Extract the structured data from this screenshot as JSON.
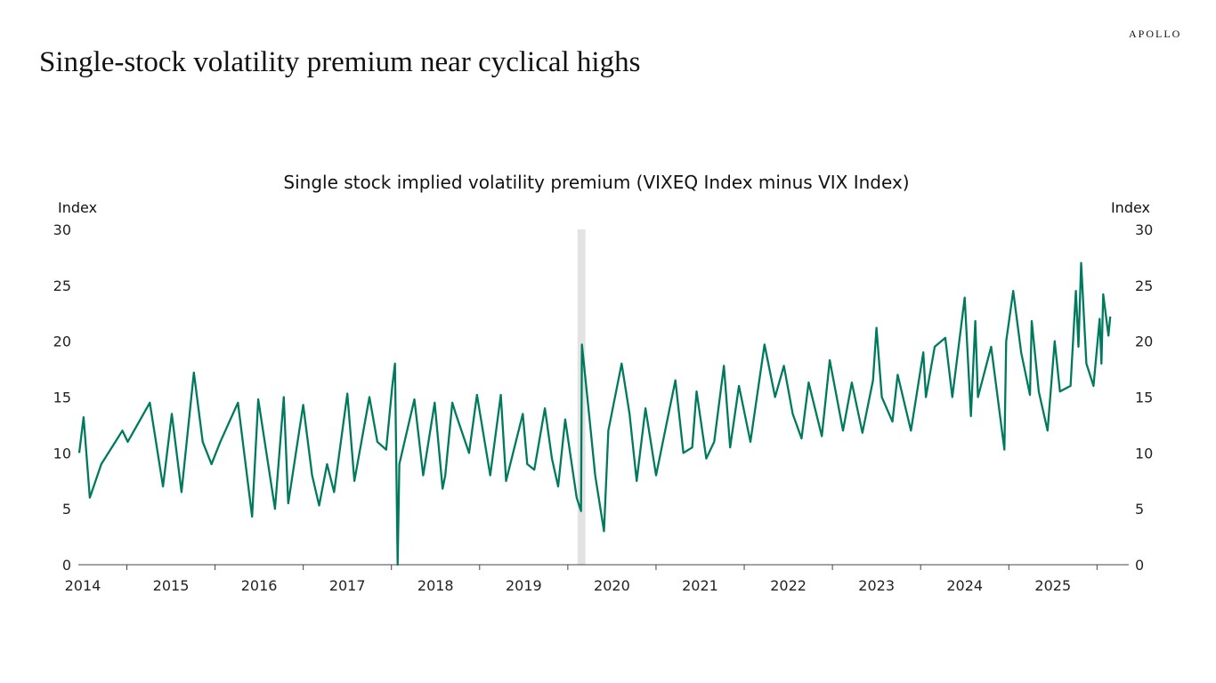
{
  "header": {
    "title": "Single-stock volatility premium near cyclical highs",
    "logo": "APOLLO"
  },
  "chart_data": {
    "type": "line",
    "title": "Single stock implied volatility premium (VIXEQ Index minus VIX Index)",
    "ylabel_left": "Index",
    "ylabel_right": "Index",
    "ylim": [
      0,
      30
    ],
    "yticks": [
      0,
      5,
      10,
      15,
      20,
      25,
      30
    ],
    "xlim": [
      2014.45,
      2026.36
    ],
    "xticks": [
      "2014",
      "2015",
      "2016",
      "2017",
      "2018",
      "2019",
      "2020",
      "2021",
      "2022",
      "2023",
      "2024",
      "2025"
    ],
    "grid": false,
    "line_color": "#007A5E",
    "shading_color": "#E3E3E3",
    "shaded_periods": [
      [
        2020.11,
        2020.2
      ]
    ],
    "points": [
      [
        2014.46,
        10
      ],
      [
        2014.51,
        13.2
      ],
      [
        2014.58,
        6
      ],
      [
        2014.71,
        9
      ],
      [
        2014.95,
        12
      ],
      [
        2015.01,
        11
      ],
      [
        2015.26,
        14.5
      ],
      [
        2015.41,
        7
      ],
      [
        2015.51,
        13.5
      ],
      [
        2015.62,
        6.5
      ],
      [
        2015.76,
        17.2
      ],
      [
        2015.86,
        11
      ],
      [
        2015.96,
        9
      ],
      [
        2016.06,
        11
      ],
      [
        2016.26,
        14.5
      ],
      [
        2016.42,
        4.3
      ],
      [
        2016.49,
        14.8
      ],
      [
        2016.68,
        5
      ],
      [
        2016.78,
        15
      ],
      [
        2016.83,
        5.5
      ],
      [
        2017.0,
        14.3
      ],
      [
        2017.1,
        8
      ],
      [
        2017.18,
        5.3
      ],
      [
        2017.27,
        9
      ],
      [
        2017.35,
        6.5
      ],
      [
        2017.5,
        15.3
      ],
      [
        2017.58,
        7.5
      ],
      [
        2017.75,
        15
      ],
      [
        2017.84,
        11
      ],
      [
        2017.94,
        10.3
      ],
      [
        2018.01,
        16
      ],
      [
        2018.04,
        18
      ],
      [
        2018.07,
        0
      ],
      [
        2018.09,
        9
      ],
      [
        2018.26,
        14.8
      ],
      [
        2018.36,
        8
      ],
      [
        2018.49,
        14.5
      ],
      [
        2018.58,
        6.8
      ],
      [
        2018.61,
        8
      ],
      [
        2018.69,
        14.5
      ],
      [
        2018.73,
        13.5
      ],
      [
        2018.88,
        10
      ],
      [
        2018.97,
        15.2
      ],
      [
        2019.12,
        8
      ],
      [
        2019.24,
        15.2
      ],
      [
        2019.3,
        7.5
      ],
      [
        2019.49,
        13.5
      ],
      [
        2019.54,
        9
      ],
      [
        2019.62,
        8.5
      ],
      [
        2019.74,
        14
      ],
      [
        2019.82,
        9.5
      ],
      [
        2019.89,
        7
      ],
      [
        2019.97,
        13
      ],
      [
        2020.1,
        6
      ],
      [
        2020.15,
        4.8
      ],
      [
        2020.16,
        19.7
      ],
      [
        2020.26,
        12
      ],
      [
        2020.31,
        8
      ],
      [
        2020.41,
        3
      ],
      [
        2020.46,
        12
      ],
      [
        2020.61,
        18
      ],
      [
        2020.7,
        13.5
      ],
      [
        2020.78,
        7.5
      ],
      [
        2020.88,
        14
      ],
      [
        2021.0,
        8
      ],
      [
        2021.22,
        16.5
      ],
      [
        2021.31,
        10
      ],
      [
        2021.41,
        10.5
      ],
      [
        2021.46,
        15.5
      ],
      [
        2021.57,
        9.5
      ],
      [
        2021.66,
        11
      ],
      [
        2021.77,
        17.8
      ],
      [
        2021.84,
        10.5
      ],
      [
        2021.94,
        16
      ],
      [
        2022.07,
        11
      ],
      [
        2022.23,
        19.7
      ],
      [
        2022.35,
        15
      ],
      [
        2022.45,
        17.8
      ],
      [
        2022.55,
        13.5
      ],
      [
        2022.65,
        11.3
      ],
      [
        2022.73,
        16.3
      ],
      [
        2022.88,
        11.5
      ],
      [
        2022.97,
        18.3
      ],
      [
        2023.12,
        12
      ],
      [
        2023.22,
        16.3
      ],
      [
        2023.34,
        11.8
      ],
      [
        2023.46,
        16.5
      ],
      [
        2023.5,
        21.2
      ],
      [
        2023.56,
        15
      ],
      [
        2023.68,
        12.8
      ],
      [
        2023.74,
        17
      ],
      [
        2023.89,
        12
      ],
      [
        2024.03,
        19
      ],
      [
        2024.06,
        15
      ],
      [
        2024.16,
        19.5
      ],
      [
        2024.28,
        20.3
      ],
      [
        2024.36,
        15
      ],
      [
        2024.5,
        23.9
      ],
      [
        2024.57,
        13.3
      ],
      [
        2024.62,
        21.8
      ],
      [
        2024.65,
        15
      ],
      [
        2024.8,
        19.5
      ],
      [
        2024.95,
        10.3
      ],
      [
        2024.97,
        20
      ],
      [
        2025.05,
        24.5
      ],
      [
        2025.14,
        19
      ],
      [
        2025.24,
        15.2
      ],
      [
        2025.26,
        21.8
      ],
      [
        2025.34,
        15.5
      ],
      [
        2025.44,
        12
      ],
      [
        2025.52,
        20
      ],
      [
        2025.58,
        15.5
      ],
      [
        2025.7,
        16
      ],
      [
        2025.76,
        24.5
      ],
      [
        2025.79,
        19.5
      ],
      [
        2025.82,
        27
      ],
      [
        2025.88,
        18
      ],
      [
        2025.96,
        16
      ],
      [
        2026.03,
        22
      ],
      [
        2026.05,
        18
      ],
      [
        2026.07,
        24.2
      ],
      [
        2026.13,
        20.5
      ],
      [
        2026.15,
        22.2
      ]
    ]
  }
}
